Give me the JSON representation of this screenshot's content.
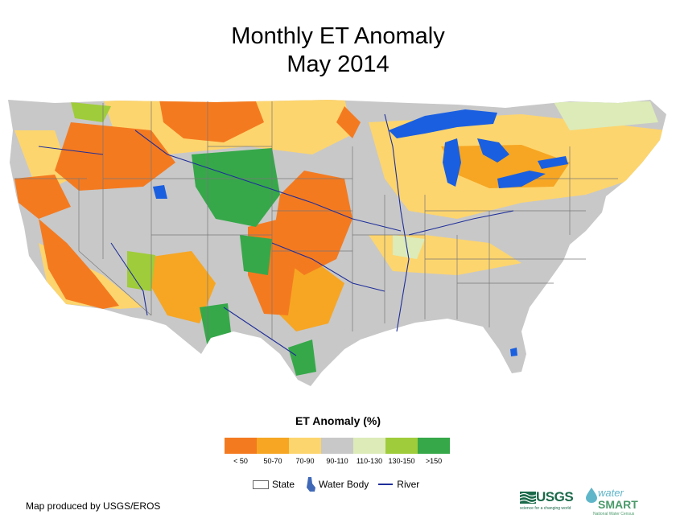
{
  "title": {
    "line1": "Monthly ET Anomaly",
    "line2": "May 2014"
  },
  "legend": {
    "title": "ET Anomaly (%)",
    "bins": [
      {
        "label": "< 50",
        "color": "#f47a20"
      },
      {
        "label": "50-70",
        "color": "#f6a623"
      },
      {
        "label": "70-90",
        "color": "#fdd56e"
      },
      {
        "label": "90-110",
        "color": "#c8c8c8"
      },
      {
        "label": "110-130",
        "color": "#dcebb8"
      },
      {
        "label": "130-150",
        "color": "#9fcc3a"
      },
      {
        "label": ">150",
        "color": "#36a84a"
      }
    ],
    "keys": {
      "state": "State",
      "water": "Water Body",
      "river": "River"
    }
  },
  "colors": {
    "water": "#1a5fe0",
    "river": "#1f2f9a",
    "state_line": "#777777",
    "land": "#c8c8c8"
  },
  "credit": "Map produced by USGS/EROS",
  "logos": {
    "usgs": "USGS",
    "usgs_tagline": "science for a changing world",
    "watersmart_a": "water",
    "watersmart_b": "SMART",
    "watersmart_tagline": "National Water Census"
  }
}
